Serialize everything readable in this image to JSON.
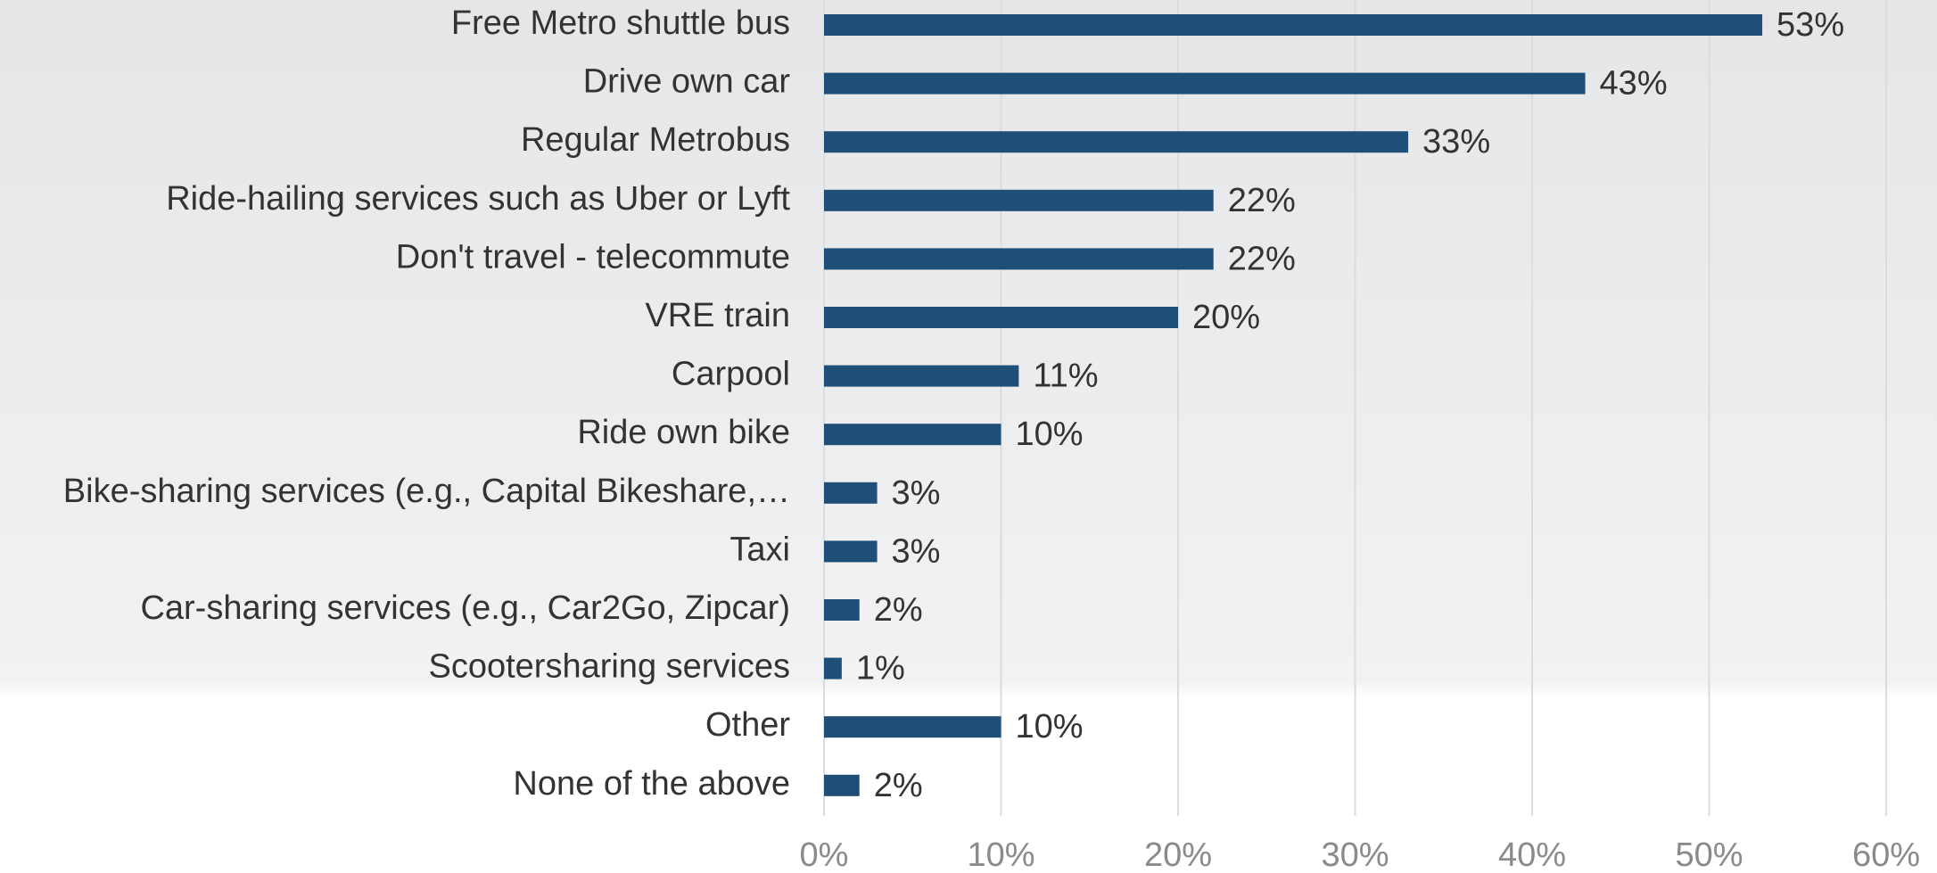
{
  "chart_data": {
    "type": "barh",
    "categories": [
      "Free Metro shuttle bus",
      "Drive own car",
      "Regular Metrobus",
      "Ride-hailing services such as Uber or Lyft",
      "Don't travel  - telecommute",
      "VRE train",
      "Carpool",
      "Ride own bike",
      "Bike-sharing services (e.g., Capital Bikeshare,…",
      "Taxi",
      "Car-sharing services (e.g., Car2Go, Zipcar)",
      "Scootersharing services",
      "Other",
      "None of the above"
    ],
    "values": [
      53,
      43,
      33,
      22,
      22,
      20,
      11,
      10,
      3,
      3,
      2,
      1,
      10,
      2
    ],
    "value_labels": [
      "53%",
      "43%",
      "33%",
      "22%",
      "22%",
      "20%",
      "11%",
      "10%",
      "3%",
      "3%",
      "2%",
      "1%",
      "10%",
      "2%"
    ],
    "color": "#1f4e79",
    "xlim": [
      0,
      60
    ],
    "xticks": [
      {
        "value": 0,
        "label": "0%"
      },
      {
        "value": 10,
        "label": "10%"
      },
      {
        "value": 20,
        "label": "20%"
      },
      {
        "value": 30,
        "label": "30%"
      },
      {
        "value": 40,
        "label": "40%"
      },
      {
        "value": 50,
        "label": "50%"
      },
      {
        "value": 60,
        "label": "60%"
      }
    ],
    "grid": true
  }
}
